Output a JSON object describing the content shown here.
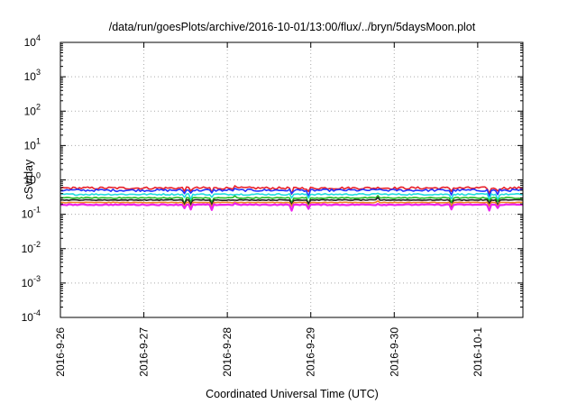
{
  "chart_data": {
    "type": "line",
    "title": "/data/run/goesPlots/archive/2016-10-01/13:00/flux/../bryn/5daysMoon.plot",
    "xlabel": "Coordinated Universal Time (UTC)",
    "ylabel": "cSv/day",
    "y_scale": "log",
    "ylim": [
      0.0001,
      10000
    ],
    "xlim": [
      "2016-09-26T00:00",
      "2016-10-01T13:00"
    ],
    "grid": true,
    "y_ticks": [
      {
        "base": "10",
        "exp": "4"
      },
      {
        "base": "10",
        "exp": "3"
      },
      {
        "base": "10",
        "exp": "2"
      },
      {
        "base": "10",
        "exp": "1"
      },
      {
        "base": "10",
        "exp": "0"
      },
      {
        "base": "10",
        "exp": "-1"
      },
      {
        "base": "10",
        "exp": "-2"
      },
      {
        "base": "10",
        "exp": "-3"
      },
      {
        "base": "10",
        "exp": "-4"
      }
    ],
    "x_ticks": [
      "2016-9-26",
      "2016-9-27",
      "2016-9-28",
      "2016-9-29",
      "2016-9-30",
      "2016-10-1"
    ],
    "series": [
      {
        "color": "#e8202a",
        "level": 0.58,
        "amp": 0.16
      },
      {
        "color": "#2233ff",
        "level": 0.5,
        "amp": 0.15
      },
      {
        "color": "#22dddd",
        "level": 0.38,
        "amp": 0.1
      },
      {
        "color": "#22bb22",
        "level": 0.3,
        "amp": 0.07
      },
      {
        "color": "#222222",
        "level": 0.26,
        "amp": 0.05
      },
      {
        "color": "#ee8822",
        "level": 0.22,
        "amp": 0.04
      },
      {
        "color": "#ee22ee",
        "level": 0.19,
        "amp": 0.07
      }
    ]
  }
}
